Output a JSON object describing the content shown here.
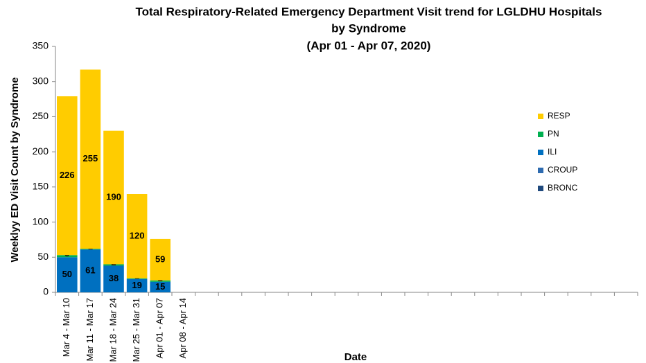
{
  "chart_data": {
    "type": "stacked_bar",
    "title": [
      "Total Respiratory-Related Emergency Department Visit trend for LGLDHU Hospitals",
      "by Syndrome",
      "(Apr 01 - Apr 07, 2020)"
    ],
    "x_label": "Date",
    "y_label": "Weeklyy ED Visit Count by Syndrome",
    "categories": [
      "Mar 4 - Mar 10",
      "Mar 11 - Mar 17",
      "Mar 18 - Mar 24",
      "Mar 25 - Mar 31",
      "Apr 01 - Apr 07",
      "Apr 08 - Apr 14",
      null,
      null,
      null,
      null,
      null,
      null,
      null,
      null,
      null,
      null,
      null,
      null,
      null,
      null,
      null,
      null,
      null,
      null,
      null
    ],
    "series": [
      {
        "name": "BRONC",
        "color": "#1f497d",
        "values": [
          0,
          0,
          0,
          0,
          0,
          null,
          null,
          null,
          null,
          null,
          null,
          null,
          null,
          null,
          null,
          null,
          null,
          null,
          null,
          null,
          null,
          null,
          null,
          null,
          null
        ]
      },
      {
        "name": "CROUP",
        "color": "#2e6bb0",
        "values": [
          0,
          0,
          0,
          0,
          0,
          null,
          null,
          null,
          null,
          null,
          null,
          null,
          null,
          null,
          null,
          null,
          null,
          null,
          null,
          null,
          null,
          null,
          null,
          null,
          null
        ]
      },
      {
        "name": "ILI",
        "color": "#0070c0",
        "values": [
          50,
          61,
          38,
          19,
          15,
          null,
          null,
          null,
          null,
          null,
          null,
          null,
          null,
          null,
          null,
          null,
          null,
          null,
          null,
          null,
          null,
          null,
          null,
          null,
          null
        ]
      },
      {
        "name": "PN",
        "color": "#00b050",
        "values": [
          3,
          1,
          2,
          1,
          2,
          null,
          null,
          null,
          null,
          null,
          null,
          null,
          null,
          null,
          null,
          null,
          null,
          null,
          null,
          null,
          null,
          null,
          null,
          null,
          null
        ]
      },
      {
        "name": "RESP",
        "color": "#ffcc00",
        "values": [
          226,
          255,
          190,
          120,
          59,
          null,
          null,
          null,
          null,
          null,
          null,
          null,
          null,
          null,
          null,
          null,
          null,
          null,
          null,
          null,
          null,
          null,
          null,
          null,
          null
        ]
      }
    ],
    "ylim": [
      0,
      350
    ],
    "yticks": [
      0,
      50,
      100,
      150,
      200,
      250,
      300,
      350
    ],
    "grid": false,
    "legend": "right"
  }
}
